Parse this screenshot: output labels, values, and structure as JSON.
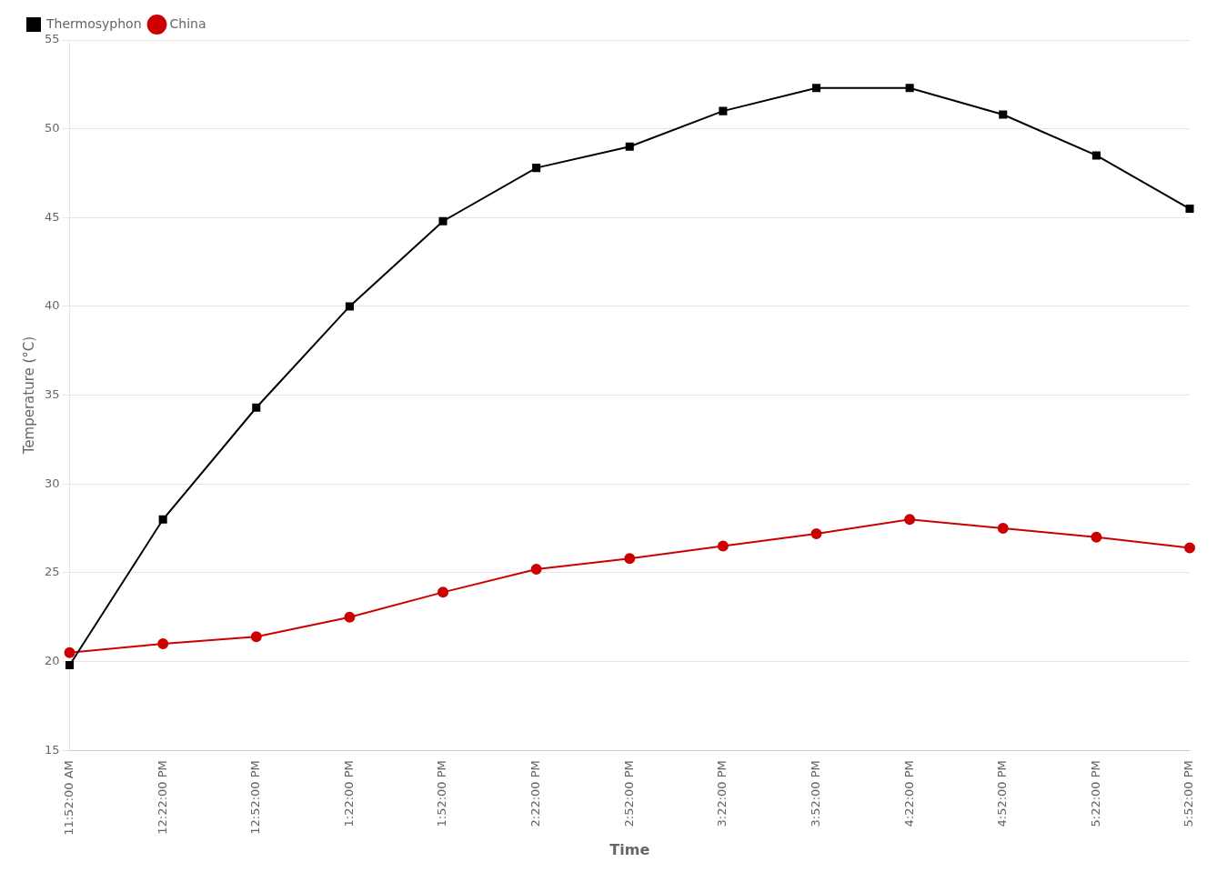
{
  "chart_data": {
    "type": "line",
    "categories": [
      "11:52:00 AM",
      "12:22:00 PM",
      "12:52:00 PM",
      "1:22:00 PM",
      "1:52:00 PM",
      "2:22:00 PM",
      "2:52:00 PM",
      "3:22:00 PM",
      "3:52:00 PM",
      "4:22:00 PM",
      "4:52:00 PM",
      "5:22:00 PM",
      "5:52:00 PM"
    ],
    "series": [
      {
        "name": "Thermosyphon",
        "color": "#000000",
        "marker": "square",
        "values": [
          19.8,
          28.0,
          34.3,
          40.0,
          44.8,
          47.8,
          49.0,
          51.0,
          52.3,
          52.3,
          50.8,
          48.5,
          45.5
        ]
      },
      {
        "name": "China",
        "color": "#cc0000",
        "marker": "circle",
        "values": [
          20.5,
          21.0,
          21.4,
          22.5,
          23.9,
          25.2,
          25.8,
          26.5,
          27.2,
          28.0,
          27.5,
          27.0,
          26.4
        ]
      }
    ],
    "x_label": "Time",
    "y_label": "Temperature (°C)",
    "ylim": [
      15,
      55
    ],
    "yticks": [
      15,
      20,
      25,
      30,
      35,
      40,
      45,
      50,
      55
    ],
    "grid": "y",
    "legend": "upper left"
  }
}
